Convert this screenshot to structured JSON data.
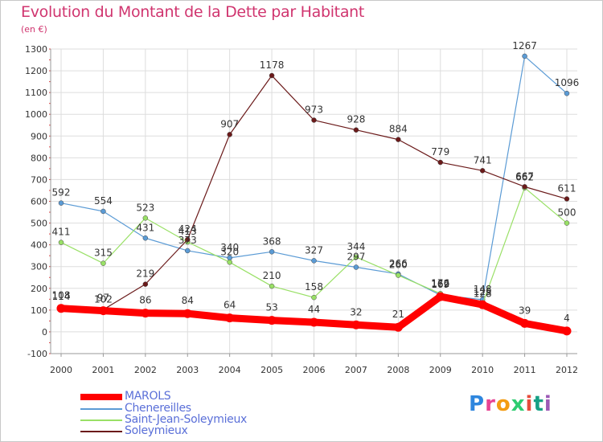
{
  "title": "Evolution du Montant de la Dette par Habitant",
  "unit_label": "(en €)",
  "logo_text": "Proxiti",
  "colors": {
    "title": "#d0356f",
    "grid": "#dddddd",
    "axis_text": "#333333",
    "legend_text": "#5a6fd8"
  },
  "chart_data": {
    "type": "line",
    "x": [
      "2000",
      "2001",
      "2002",
      "2003",
      "2004",
      "2005",
      "2006",
      "2007",
      "2008",
      "2009",
      "2010",
      "2011",
      "2012"
    ],
    "ylim": [
      -100,
      1300
    ],
    "yticks": [
      -100,
      0,
      100,
      200,
      300,
      400,
      500,
      600,
      700,
      800,
      900,
      1000,
      1100,
      1200,
      1300
    ],
    "grid": true,
    "legend_position": "bottom-left",
    "series": [
      {
        "name": "MAROLS",
        "color": "#ff0000",
        "values": [
          108,
          97,
          86,
          84,
          64,
          53,
          44,
          32,
          21,
          162,
          125,
          39,
          4
        ]
      },
      {
        "name": "Chenereilles",
        "color": "#5b9bd5",
        "values": [
          592,
          554,
          431,
          373,
          340,
          368,
          327,
          297,
          266,
          169,
          148,
          1267,
          1096
        ]
      },
      {
        "name": "Saint-Jean-Soleymieux",
        "color": "#99e066",
        "values": [
          411,
          315,
          523,
          413,
          320,
          210,
          158,
          344,
          260,
          176,
          128,
          662,
          500
        ]
      },
      {
        "name": "Soleymieux",
        "color": "#6b1a1a",
        "values": [
          114,
          102,
          219,
          424,
          907,
          1178,
          973,
          928,
          884,
          779,
          741,
          667,
          611
        ]
      }
    ]
  }
}
